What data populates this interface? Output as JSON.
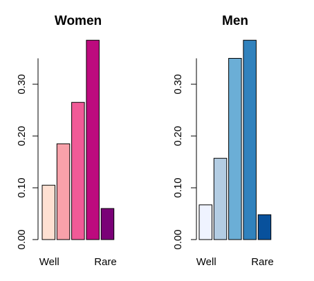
{
  "chart_data": [
    {
      "type": "bar",
      "title": "Women",
      "categories": [
        "Well",
        "",
        "",
        "",
        "Rare"
      ],
      "values": [
        0.105,
        0.185,
        0.265,
        0.385,
        0.06
      ],
      "colors": [
        "#FEE0D2",
        "#F8A1AA",
        "#F15A97",
        "#BD0A7E",
        "#7A0177"
      ],
      "ylim": [
        0,
        0.35
      ],
      "yticks": [
        0.0,
        0.1,
        0.2,
        0.3
      ],
      "ytick_labels": [
        "0.00",
        "0.10",
        "0.20",
        "0.30"
      ],
      "xtick_labels": [
        "Well",
        "Rare"
      ],
      "grid": false
    },
    {
      "type": "bar",
      "title": "Men",
      "categories": [
        "Well",
        "",
        "",
        "",
        "Rare"
      ],
      "values": [
        0.067,
        0.157,
        0.35,
        0.385,
        0.048
      ],
      "colors": [
        "#EFF3FF",
        "#B3CDE3",
        "#6BAED6",
        "#3182BD",
        "#08519C"
      ],
      "ylim": [
        0,
        0.35
      ],
      "yticks": [
        0.0,
        0.1,
        0.2,
        0.3
      ],
      "ytick_labels": [
        "0.00",
        "0.10",
        "0.20",
        "0.30"
      ],
      "xtick_labels": [
        "Well",
        "Rare"
      ],
      "grid": false
    }
  ]
}
